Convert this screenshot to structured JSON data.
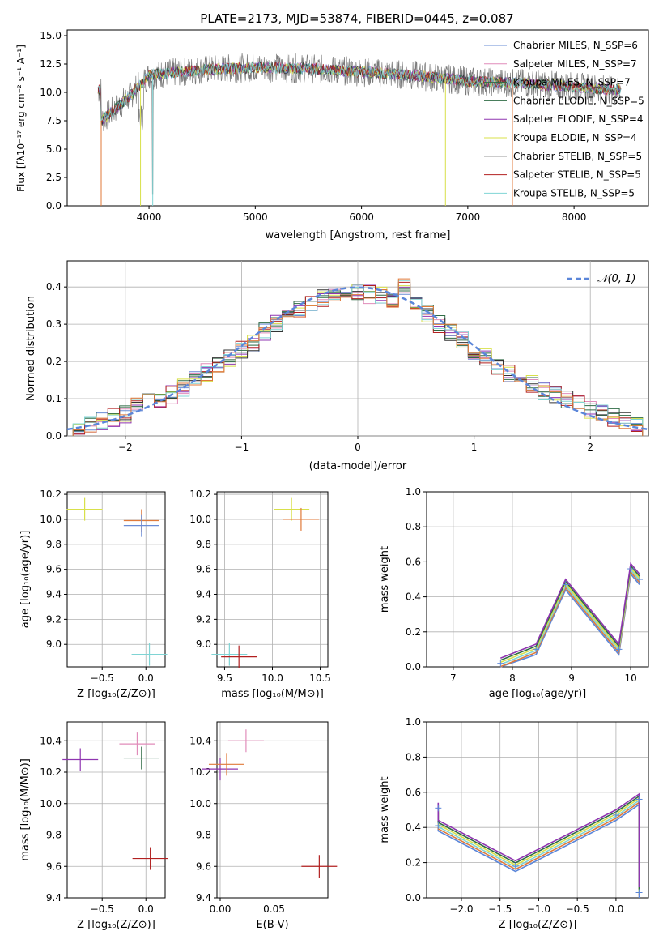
{
  "chart_data": [
    {
      "type": "line",
      "title": "PLATE=2173, MJD=53874, FIBERID=0445, z=0.087",
      "xlabel": "wavelength [Angstrom, rest frame]",
      "ylabel": "Flux [fλ10⁻¹⁷ erg cm⁻² s⁻¹ A⁻¹]",
      "xlim": [
        3230,
        8700
      ],
      "ylim": [
        0,
        15.5
      ],
      "xticks": [
        4000,
        5000,
        6000,
        7000,
        8000
      ],
      "yticks": [
        0.0,
        2.5,
        5.0,
        7.5,
        10.0,
        12.5,
        15.0
      ],
      "legend_position": "top-right",
      "series": [
        {
          "name": "Chabrier MILES, N_SSP=6",
          "color": "#6a8cd6"
        },
        {
          "name": "Salpeter MILES, N_SSP=7",
          "color": "#e08cba"
        },
        {
          "name": "Kroupa MILES, N_SSP=7",
          "color": "#2f6b45"
        },
        {
          "name": "Chabrier ELODIE, N_SSP=5",
          "color": "#2f6b45"
        },
        {
          "name": "Salpeter ELODIE, N_SSP=4",
          "color": "#8f35b0"
        },
        {
          "name": "Kroupa ELODIE, N_SSP=4",
          "color": "#d8e04a"
        },
        {
          "name": "Chabrier STELIB, N_SSP=5",
          "color": "#333333"
        },
        {
          "name": "Salpeter STELIB, N_SSP=5",
          "color": "#b22020"
        },
        {
          "name": "Kroupa STELIB, N_SSP=5",
          "color": "#7fd4d4"
        }
      ],
      "data_sample": [
        {
          "x": 3550,
          "y": 7.5
        },
        {
          "x": 3800,
          "y": 9.5
        },
        {
          "x": 4000,
          "y": 11.5
        },
        {
          "x": 4500,
          "y": 12.0
        },
        {
          "x": 5000,
          "y": 12.2
        },
        {
          "x": 5500,
          "y": 12.1
        },
        {
          "x": 6000,
          "y": 11.8
        },
        {
          "x": 6500,
          "y": 11.5
        },
        {
          "x": 7000,
          "y": 11.0
        },
        {
          "x": 7500,
          "y": 10.8
        },
        {
          "x": 8000,
          "y": 10.5
        },
        {
          "x": 8450,
          "y": 10.2
        }
      ]
    },
    {
      "type": "bar",
      "xlabel": "(data-model)/error",
      "ylabel": "Normed distribution",
      "xlim": [
        -2.5,
        2.5
      ],
      "ylim": [
        0,
        0.47
      ],
      "xticks": [
        -2,
        -1,
        0,
        1,
        2
      ],
      "yticks": [
        0.0,
        0.1,
        0.2,
        0.3,
        0.4
      ],
      "legend_position": "top-right",
      "curve_name": "𝒩(0, 1)",
      "bin_centers": [
        -2.4,
        -2.3,
        -2.2,
        -2.1,
        -2.0,
        -1.9,
        -1.8,
        -1.7,
        -1.6,
        -1.5,
        -1.4,
        -1.3,
        -1.2,
        -1.1,
        -1.0,
        -0.9,
        -0.8,
        -0.7,
        -0.6,
        -0.5,
        -0.4,
        -0.3,
        -0.2,
        -0.1,
        0.0,
        0.1,
        0.2,
        0.3,
        0.4,
        0.5,
        0.6,
        0.7,
        0.8,
        0.9,
        1.0,
        1.1,
        1.2,
        1.3,
        1.4,
        1.5,
        1.6,
        1.7,
        1.8,
        1.9,
        2.0,
        2.1,
        2.2,
        2.3,
        2.4
      ],
      "hist_values": [
        0.02,
        0.03,
        0.04,
        0.05,
        0.06,
        0.08,
        0.09,
        0.1,
        0.11,
        0.13,
        0.15,
        0.17,
        0.19,
        0.21,
        0.23,
        0.25,
        0.28,
        0.3,
        0.32,
        0.34,
        0.35,
        0.37,
        0.38,
        0.38,
        0.39,
        0.38,
        0.38,
        0.37,
        0.4,
        0.36,
        0.33,
        0.3,
        0.28,
        0.26,
        0.23,
        0.21,
        0.19,
        0.17,
        0.16,
        0.14,
        0.12,
        0.11,
        0.1,
        0.09,
        0.07,
        0.06,
        0.05,
        0.04,
        0.03
      ]
    },
    {
      "type": "scatter",
      "xlabel": "Z [log₁₀(Z/Z⊙)]",
      "ylabel": "age  [log₁₀(age/yr)]",
      "xlim": [
        -0.9,
        0.22
      ],
      "ylim": [
        8.82,
        10.22
      ],
      "xticks": [
        -0.5,
        0.0
      ],
      "xtick_labels": [
        "−0.5",
        "0.0"
      ],
      "yticks": [
        9.0,
        9.2,
        9.4,
        9.6,
        9.8,
        10.0,
        10.2
      ],
      "points": [
        {
          "x": -0.7,
          "y": 10.08,
          "color": "#d8e04a"
        },
        {
          "x": -0.05,
          "y": 9.99,
          "color": "#e07a3a"
        },
        {
          "x": -0.05,
          "y": 9.95,
          "color": "#6a8cd6"
        },
        {
          "x": 0.04,
          "y": 8.92,
          "color": "#7fd4d4"
        }
      ]
    },
    {
      "type": "scatter",
      "xlabel": "mass [log₁₀(M/M⊙)]",
      "ylabel": "",
      "xlim": [
        9.42,
        10.58
      ],
      "ylim": [
        8.82,
        10.22
      ],
      "xticks": [
        9.5,
        10.0,
        10.5
      ],
      "xtick_labels": [
        "9.5",
        "10.0",
        "10.5"
      ],
      "yticks": [
        9.0,
        9.2,
        9.4,
        9.6,
        9.8,
        10.0,
        10.2
      ],
      "points": [
        {
          "x": 10.2,
          "y": 10.08,
          "color": "#d8e04a"
        },
        {
          "x": 10.3,
          "y": 10.0,
          "color": "#e07a3a"
        },
        {
          "x": 9.55,
          "y": 8.92,
          "color": "#7fd4d4"
        },
        {
          "x": 9.65,
          "y": 8.9,
          "color": "#b22020"
        }
      ]
    },
    {
      "type": "line",
      "xlabel": "age  [log₁₀(age/yr)]",
      "ylabel": "mass weight",
      "xlim": [
        6.55,
        10.3
      ],
      "ylim": [
        0,
        1
      ],
      "xticks": [
        7,
        8,
        9,
        10
      ],
      "yticks": [
        0.0,
        0.2,
        0.4,
        0.6,
        0.8,
        1.0
      ],
      "points": [
        {
          "x": 7.8,
          "y": 0.02
        },
        {
          "x": 8.4,
          "y": 0.1
        },
        {
          "x": 8.9,
          "y": 0.47
        },
        {
          "x": 9.8,
          "y": 0.1
        },
        {
          "x": 10.0,
          "y": 0.56
        },
        {
          "x": 10.15,
          "y": 0.5
        }
      ]
    },
    {
      "type": "scatter",
      "xlabel": "Z [log₁₀(Z/Z⊙)]",
      "ylabel": "mass [log₁₀(M/M⊙)]",
      "xlim": [
        -0.9,
        0.22
      ],
      "ylim": [
        9.4,
        10.52
      ],
      "xticks": [
        -0.5,
        0.0
      ],
      "xtick_labels": [
        "−0.5",
        "0.0"
      ],
      "yticks": [
        9.4,
        9.6,
        9.8,
        10.0,
        10.2,
        10.4
      ],
      "points": [
        {
          "x": -0.75,
          "y": 10.28,
          "color": "#8f35b0"
        },
        {
          "x": -0.1,
          "y": 10.38,
          "color": "#e08cba"
        },
        {
          "x": -0.05,
          "y": 10.29,
          "color": "#2f6b45"
        },
        {
          "x": 0.05,
          "y": 9.65,
          "color": "#b22020"
        }
      ]
    },
    {
      "type": "scatter",
      "xlabel": "E(B-V)",
      "ylabel": "",
      "xlim": [
        -0.003,
        0.1
      ],
      "ylim": [
        9.4,
        10.52
      ],
      "xticks": [
        0.0,
        0.05
      ],
      "xtick_labels": [
        "0.00",
        "0.05"
      ],
      "yticks": [
        9.4,
        9.6,
        9.8,
        10.0,
        10.2,
        10.4
      ],
      "points": [
        {
          "x": 0.0,
          "y": 10.22,
          "color": "#8f35b0"
        },
        {
          "x": 0.006,
          "y": 10.25,
          "color": "#e07a3a"
        },
        {
          "x": 0.024,
          "y": 10.4,
          "color": "#e08cba"
        },
        {
          "x": 0.092,
          "y": 9.6,
          "color": "#b22020"
        }
      ]
    },
    {
      "type": "line",
      "xlabel": "Z [log₁₀(Z/Z⊙)]",
      "ylabel": "mass weight",
      "xlim": [
        -2.45,
        0.42
      ],
      "ylim": [
        0,
        1
      ],
      "xticks": [
        -2.0,
        -1.5,
        -1.0,
        -0.5,
        0.0
      ],
      "xtick_labels": [
        "−2.0",
        "−1.5",
        "−1.0",
        "−0.5",
        "0.0"
      ],
      "yticks": [
        0.0,
        0.2,
        0.4,
        0.6,
        0.8,
        1.0
      ],
      "points": [
        {
          "x": -2.3,
          "y": 0.51
        },
        {
          "x": -2.3,
          "y": 0.41
        },
        {
          "x": -1.3,
          "y": 0.18
        },
        {
          "x": 0.0,
          "y": 0.47
        },
        {
          "x": 0.3,
          "y": 0.56
        },
        {
          "x": 0.3,
          "y": 0.03
        }
      ]
    }
  ]
}
